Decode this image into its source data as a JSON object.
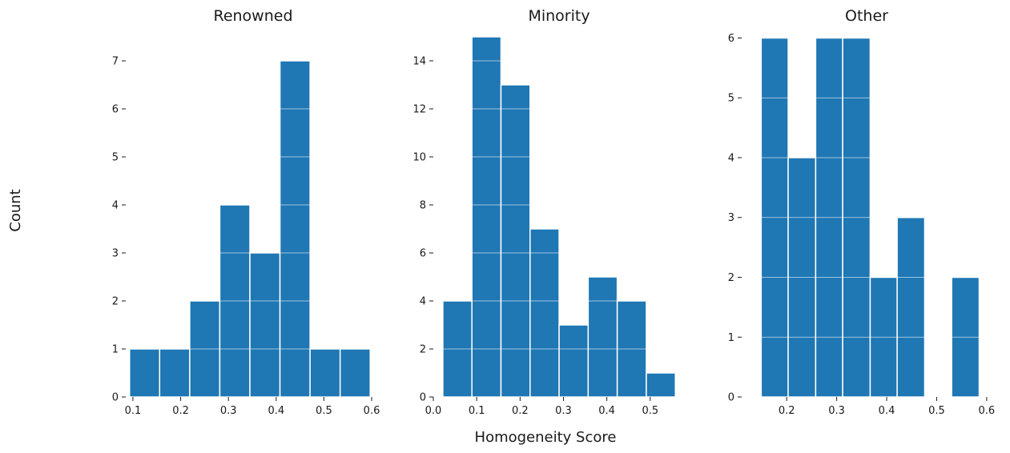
{
  "figure": {
    "ylabel": "Count",
    "xlabel": "Homogeneity Score",
    "bar_color": "#1f77b4",
    "grid_color": "#ffffff"
  },
  "chart_data": [
    {
      "type": "bar",
      "title": "Renowned",
      "xlim": [
        0.085,
        0.605
      ],
      "ylim": [
        0,
        7.6
      ],
      "xticks": [
        0.1,
        0.2,
        0.3,
        0.4,
        0.5,
        0.6
      ],
      "xtick_labels": [
        "0.1",
        "0.2",
        "0.3",
        "0.4",
        "0.5",
        "0.6"
      ],
      "yticks": [
        0,
        1,
        2,
        3,
        4,
        5,
        6,
        7
      ],
      "ytick_labels": [
        "0",
        "1",
        "2",
        "3",
        "4",
        "5",
        "6",
        "7"
      ],
      "grid": true,
      "bins": [
        {
          "x0": 0.093,
          "x1": 0.156,
          "count": 1
        },
        {
          "x0": 0.156,
          "x1": 0.219,
          "count": 1
        },
        {
          "x0": 0.219,
          "x1": 0.282,
          "count": 2
        },
        {
          "x0": 0.282,
          "x1": 0.345,
          "count": 4
        },
        {
          "x0": 0.345,
          "x1": 0.408,
          "count": 3
        },
        {
          "x0": 0.408,
          "x1": 0.471,
          "count": 7
        },
        {
          "x0": 0.471,
          "x1": 0.534,
          "count": 1
        },
        {
          "x0": 0.534,
          "x1": 0.597,
          "count": 1
        }
      ]
    },
    {
      "type": "bar",
      "title": "Minority",
      "xlim": [
        0.0,
        0.565
      ],
      "ylim": [
        0,
        15.2
      ],
      "xticks": [
        0.0,
        0.1,
        0.2,
        0.3,
        0.4,
        0.5
      ],
      "xtick_labels": [
        "0.0",
        "0.1",
        "0.2",
        "0.3",
        "0.4",
        "0.5"
      ],
      "yticks": [
        0,
        2,
        4,
        6,
        8,
        10,
        12,
        14
      ],
      "ytick_labels": [
        "0",
        "2",
        "4",
        "6",
        "8",
        "10",
        "12",
        "14"
      ],
      "grid": true,
      "bins": [
        {
          "x0": 0.022,
          "x1": 0.089,
          "count": 4
        },
        {
          "x0": 0.089,
          "x1": 0.156,
          "count": 15
        },
        {
          "x0": 0.156,
          "x1": 0.223,
          "count": 13
        },
        {
          "x0": 0.223,
          "x1": 0.29,
          "count": 7
        },
        {
          "x0": 0.29,
          "x1": 0.357,
          "count": 3
        },
        {
          "x0": 0.357,
          "x1": 0.424,
          "count": 5
        },
        {
          "x0": 0.424,
          "x1": 0.491,
          "count": 4
        },
        {
          "x0": 0.491,
          "x1": 0.558,
          "count": 1
        }
      ]
    },
    {
      "type": "bar",
      "title": "Other",
      "xlim": [
        0.11,
        0.605
      ],
      "ylim": [
        0,
        6.1
      ],
      "xticks": [
        0.2,
        0.3,
        0.4,
        0.5,
        0.6
      ],
      "xtick_labels": [
        "0.2",
        "0.3",
        "0.4",
        "0.5",
        "0.6"
      ],
      "yticks": [
        0,
        1,
        2,
        3,
        4,
        5,
        6
      ],
      "ytick_labels": [
        "0",
        "1",
        "2",
        "3",
        "4",
        "5",
        "6"
      ],
      "grid": true,
      "bins": [
        {
          "x0": 0.149,
          "x1": 0.203,
          "count": 6
        },
        {
          "x0": 0.203,
          "x1": 0.258,
          "count": 4
        },
        {
          "x0": 0.258,
          "x1": 0.312,
          "count": 6
        },
        {
          "x0": 0.312,
          "x1": 0.367,
          "count": 6
        },
        {
          "x0": 0.367,
          "x1": 0.421,
          "count": 2
        },
        {
          "x0": 0.421,
          "x1": 0.476,
          "count": 3
        },
        {
          "x0": 0.476,
          "x1": 0.53,
          "count": 0
        },
        {
          "x0": 0.53,
          "x1": 0.585,
          "count": 2
        }
      ]
    }
  ]
}
